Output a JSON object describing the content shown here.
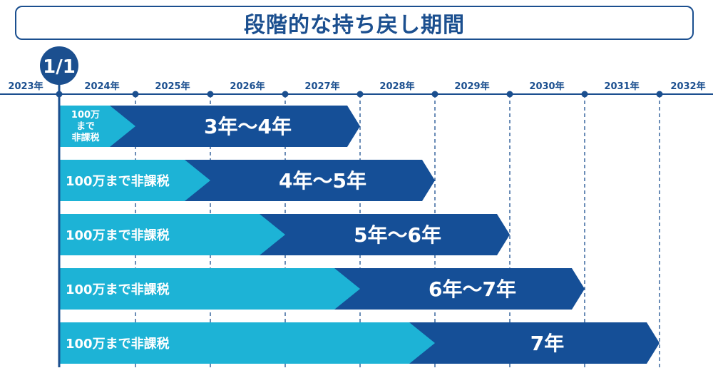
{
  "title": "段階的な持ち戻し期間",
  "marker": "1/1",
  "years": [
    "2023年",
    "2024年",
    "2025年",
    "2026年",
    "2027年",
    "2028年",
    "2029年",
    "2030年",
    "2031年",
    "2032年"
  ],
  "colors": {
    "navy": "#1b4f8f",
    "light_blue": "#1db3d6",
    "dark_blue": "#154f97",
    "grid": "#1b4f8f"
  },
  "rows": [
    {
      "tax_free_label": "100万まで非課税",
      "tax_free_lines": [
        "100万",
        "まで",
        "非課税"
      ],
      "period": "3年〜4年",
      "light_end_year": 2024,
      "end_year": 2027
    },
    {
      "tax_free_label": "100万まで非課税",
      "period": "4年〜5年",
      "light_end_year": 2025,
      "end_year": 2028
    },
    {
      "tax_free_label": "100万まで非課税",
      "period": "5年〜6年",
      "light_end_year": 2026,
      "end_year": 2029
    },
    {
      "tax_free_label": "100万まで非課税",
      "period": "6年〜7年",
      "light_end_year": 2027,
      "end_year": 2030
    },
    {
      "tax_free_label": "100万まで非課税",
      "period": "7年",
      "light_end_year": 2028,
      "end_year": 2031
    }
  ]
}
